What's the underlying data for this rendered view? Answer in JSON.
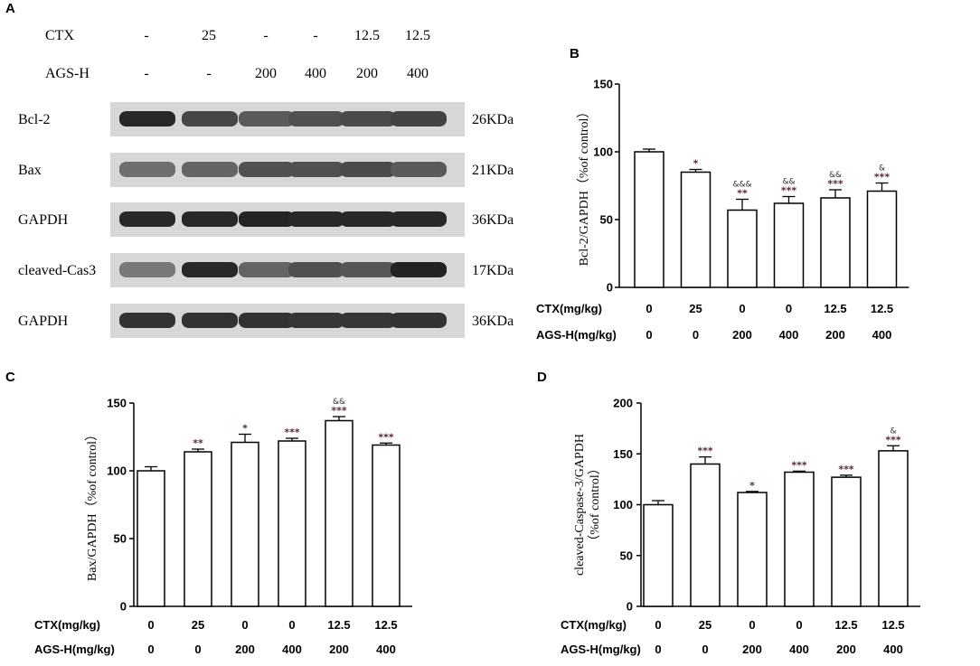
{
  "panels": {
    "A": "A",
    "B": "B",
    "C": "C",
    "D": "D"
  },
  "blot": {
    "treatments": [
      {
        "label": "CTX",
        "values": [
          "-",
          "25",
          "-",
          "-",
          "12.5",
          "12.5"
        ]
      },
      {
        "label": "AGS-H",
        "values": [
          "-",
          "-",
          "200",
          "400",
          "200",
          "400"
        ]
      }
    ],
    "bands": [
      {
        "label": "Bcl-2",
        "kda": "26KDa",
        "intensity": [
          0.95,
          0.8,
          0.7,
          0.75,
          0.78,
          0.82
        ]
      },
      {
        "label": "Bax",
        "kda": "21KDa",
        "intensity": [
          0.6,
          0.65,
          0.75,
          0.75,
          0.78,
          0.7
        ]
      },
      {
        "label": "GAPDH",
        "kda": "36KDa",
        "intensity": [
          0.95,
          0.95,
          0.97,
          0.95,
          0.95,
          0.95
        ]
      },
      {
        "label": "cleaved-Cas3",
        "kda": "17KDa",
        "intensity": [
          0.55,
          0.95,
          0.65,
          0.75,
          0.72,
          0.98
        ]
      },
      {
        "label": "GAPDH",
        "kda": "36KDa",
        "intensity": [
          0.9,
          0.9,
          0.9,
          0.88,
          0.88,
          0.9
        ]
      }
    ]
  },
  "x_table": {
    "rows": [
      {
        "label": "CTX(mg/kg)",
        "values": [
          "0",
          "25",
          "0",
          "0",
          "12.5",
          "12.5"
        ]
      },
      {
        "label": "AGS-H(mg/kg)",
        "values": [
          "0",
          "0",
          "200",
          "400",
          "200",
          "400"
        ]
      }
    ]
  },
  "chart_data": [
    {
      "type": "bar",
      "panel": "B",
      "ylabel": "Bcl-2/GAPDH（%of control）",
      "ylim": [
        0,
        150
      ],
      "yticks": [
        0,
        50,
        100,
        150
      ],
      "values": [
        100,
        85,
        57,
        62,
        66,
        71
      ],
      "errors": [
        2,
        2,
        8,
        5,
        6,
        6
      ],
      "sig": [
        "",
        "*",
        "**",
        "***",
        "***",
        "***"
      ],
      "sig2": [
        "",
        "",
        "&&&",
        "&&",
        "&&",
        "&"
      ]
    },
    {
      "type": "bar",
      "panel": "C",
      "ylabel": "Bax/GAPDH（%of control）",
      "ylim": [
        0,
        150
      ],
      "yticks": [
        0,
        50,
        100,
        150
      ],
      "values": [
        100,
        114,
        121,
        122,
        137,
        119
      ],
      "errors": [
        3,
        2,
        6,
        2,
        3,
        1.5
      ],
      "sig": [
        "",
        "**",
        "*",
        "***",
        "***",
        "***"
      ],
      "sig2": [
        "",
        "",
        "",
        "",
        "&&",
        ""
      ]
    },
    {
      "type": "bar",
      "panel": "D",
      "ylabel": "cleaved-Caspase-3/GAPDH",
      "ylabel2": "（%of control）",
      "ylim": [
        0,
        200
      ],
      "yticks": [
        0,
        50,
        100,
        150,
        200
      ],
      "values": [
        100,
        140,
        112,
        132,
        127,
        153
      ],
      "errors": [
        4,
        7,
        1,
        1,
        2,
        5
      ],
      "sig": [
        "",
        "***",
        "*",
        "***",
        "***",
        "***"
      ],
      "sig2": [
        "",
        "",
        "",
        "",
        "",
        "&"
      ]
    }
  ]
}
